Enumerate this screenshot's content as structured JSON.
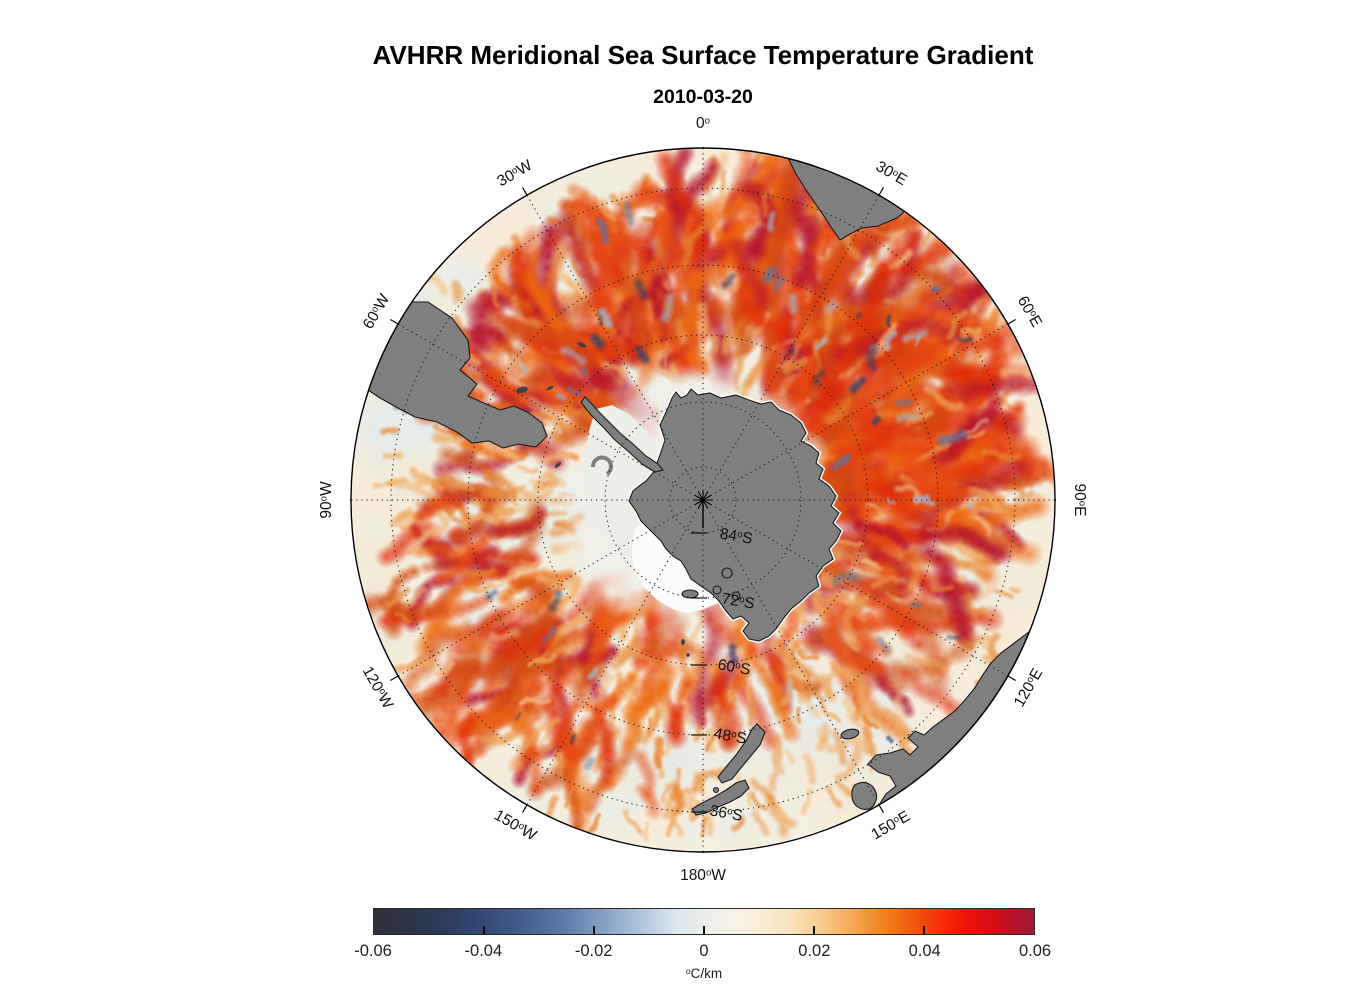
{
  "title": "AVHRR Meridional Sea Surface Temperature Gradient",
  "subtitle": "2010-03-20",
  "map": {
    "projection": "south-polar stereographic, Antarctica centered",
    "longitude_labels": [
      "0°",
      "30°E",
      "60°E",
      "90°E",
      "120°E",
      "150°E",
      "180°W",
      "150°W",
      "120°W",
      "90°W",
      "60°W",
      "30°W"
    ],
    "latitude_labels": [
      "84°S",
      "72°S",
      "60°S",
      "48°S",
      "36°S"
    ],
    "land_color": "#7f7f7f",
    "ice_shelf_color": "#fcfdfb",
    "ocean_base_color": "#f8ecda",
    "graticule_color": "#1a1a1a"
  },
  "colorbar": {
    "tick_labels": [
      "-0.06",
      "-0.04",
      "-0.02",
      "0",
      "0.02",
      "0.04",
      "0.06"
    ],
    "unit": "°C/km",
    "gradient_stops": [
      {
        "p": 0.0,
        "c": "#2f3238"
      },
      {
        "p": 0.06,
        "c": "#2c3448"
      },
      {
        "p": 0.13,
        "c": "#2f4065"
      },
      {
        "p": 0.21,
        "c": "#3d5787"
      },
      {
        "p": 0.29,
        "c": "#5f7bab"
      },
      {
        "p": 0.36,
        "c": "#8fa8c9"
      },
      {
        "p": 0.42,
        "c": "#bccfe2"
      },
      {
        "p": 0.46,
        "c": "#dde8ee"
      },
      {
        "p": 0.5,
        "c": "#e9efe9"
      },
      {
        "p": 0.54,
        "c": "#f5f2e8"
      },
      {
        "p": 0.58,
        "c": "#faeeda"
      },
      {
        "p": 0.63,
        "c": "#fbe3bd"
      },
      {
        "p": 0.68,
        "c": "#f9c98a"
      },
      {
        "p": 0.73,
        "c": "#f4a44f"
      },
      {
        "p": 0.78,
        "c": "#ef7d15"
      },
      {
        "p": 0.82,
        "c": "#f1560d"
      },
      {
        "p": 0.86,
        "c": "#fa2c06"
      },
      {
        "p": 0.9,
        "c": "#ee1007"
      },
      {
        "p": 0.94,
        "c": "#d50f15"
      },
      {
        "p": 0.97,
        "c": "#b51228"
      },
      {
        "p": 1.0,
        "c": "#9c1a35"
      }
    ]
  },
  "chart_data": {
    "type": "heatmap",
    "title": "AVHRR Meridional Sea Surface Temperature Gradient",
    "date": "2010-03-20",
    "variable": "meridional sea surface temperature gradient",
    "units": "°C/km",
    "colorbar_range": [
      -0.06,
      0.06
    ],
    "colorbar_ticks": [
      -0.06,
      -0.04,
      -0.02,
      0,
      0.02,
      0.04,
      0.06
    ],
    "projection": "south polar stereographic",
    "longitude_gridline_spacing_deg": 30,
    "latitude_circles": [
      "84°S",
      "72°S",
      "60°S",
      "48°S",
      "36°S"
    ],
    "visible_land": [
      "Antarctica",
      "South America (Patagonia / Tierra del Fuego)",
      "Southern Africa",
      "Australia",
      "Tasmania",
      "New Zealand"
    ],
    "legend_position": "bottom"
  }
}
